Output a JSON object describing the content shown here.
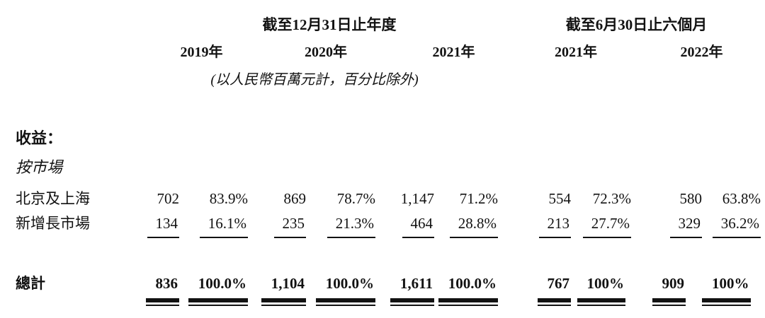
{
  "table": {
    "group_headers": [
      "截至12月31日止年度",
      "截至6月30日止六個月"
    ],
    "year_headers": [
      "2019年",
      "2020年",
      "2021年",
      "2021年",
      "2022年"
    ],
    "unit_note": "(以人民幣百萬元計，百分比除外)",
    "section_label": "收益：",
    "subsection_label": "按市場",
    "rows": [
      {
        "label": "北京及上海",
        "values": [
          "702",
          "83.9%",
          "869",
          "78.7%",
          "1,147",
          "71.2%",
          "554",
          "72.3%",
          "580",
          "63.8%"
        ]
      },
      {
        "label": "新增長市場",
        "values": [
          "134",
          "16.1%",
          "235",
          "21.3%",
          "464",
          "28.8%",
          "213",
          "27.7%",
          "329",
          "36.2%"
        ]
      }
    ],
    "total_row": {
      "label": "總計",
      "values": [
        "836",
        "100.0%",
        "1,104",
        "100.0%",
        "1,611",
        "100.0%",
        "767",
        "100%",
        "909",
        "100%"
      ]
    }
  }
}
